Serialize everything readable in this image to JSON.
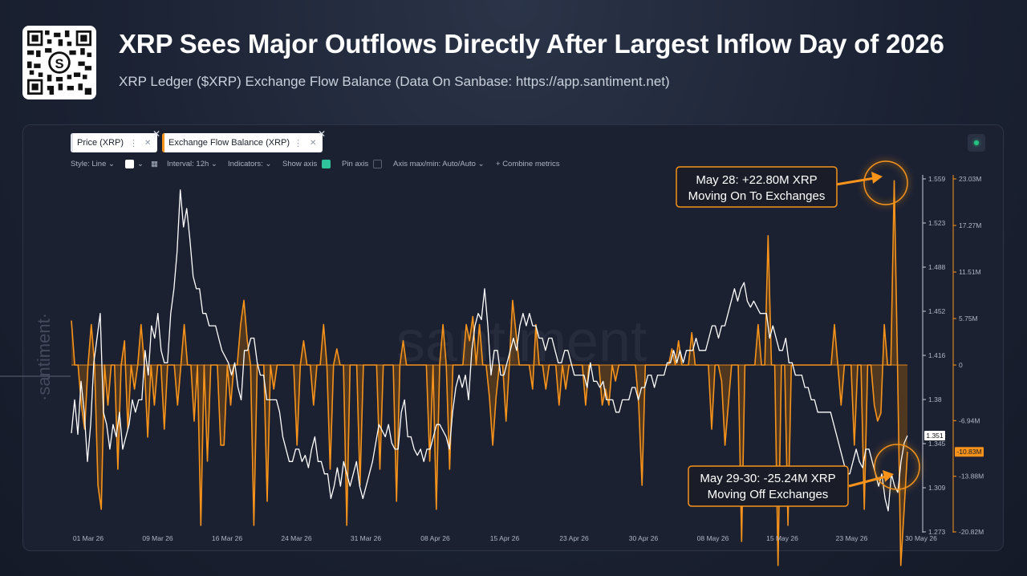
{
  "header": {
    "title": "XRP Sees Major Outflows Directly After Largest Inflow Day of 2026",
    "subtitle": "XRP Ledger ($XRP) Exchange Flow Balance (Data On Sanbase: https://app.santiment.net)"
  },
  "tabs": [
    {
      "label": "Price (XRP)",
      "color": "#ffffff"
    },
    {
      "label": "Exchange Flow Balance (XRP)",
      "color": "#f7931a"
    }
  ],
  "toolbar": {
    "style": "Style: Line",
    "interval": "Interval: 12h",
    "indicators": "Indicators:",
    "show_axis": "Show axis",
    "pin_axis": "Pin axis",
    "axis_minmax": "Axis max/min: Auto/Auto",
    "combine": "Combine metrics"
  },
  "watermark": "santiment",
  "side_watermark": "·santiment·",
  "annotations": {
    "top_line1": "May 28: +22.80M XRP",
    "top_line2": "Moving On To Exchanges",
    "bottom_line1": "May 29-30: -25.24M XRP",
    "bottom_line2": "Moving Off Exchanges"
  },
  "colors": {
    "price": "#ffffff",
    "flow": "#f7931a",
    "flow_fill": "#7a4a12",
    "accent": "#f7931a"
  },
  "chart_data": {
    "type": "line",
    "x_ticks": [
      "01 Mar 26",
      "09 Mar 26",
      "16 Mar 26",
      "24 Mar 26",
      "31 Mar 26",
      "08 Apr 26",
      "15 Apr 26",
      "23 Apr 26",
      "30 Apr 26",
      "08 May 26",
      "15 May 26",
      "23 May 26",
      "30 May 26"
    ],
    "price_axis": {
      "ticks": [
        "1.559",
        "1.523",
        "1.488",
        "1.452",
        "1.416",
        "1.38",
        "1.345",
        "1.309",
        "1.273"
      ],
      "min": 1.273,
      "max": 1.559,
      "current_label": "1.351"
    },
    "flow_axis": {
      "ticks": [
        "23.03M",
        "17.27M",
        "11.51M",
        "5.75M",
        "0",
        "-6.94M",
        "-13.88M",
        "-20.82M"
      ],
      "current_label": "-10.83M"
    },
    "series": [
      {
        "name": "Price (XRP)",
        "values": [
          1.353,
          1.38,
          1.352,
          1.395,
          1.37,
          1.33,
          1.36,
          1.41,
          1.43,
          1.45,
          1.37,
          1.36,
          1.34,
          1.36,
          1.35,
          1.37,
          1.34,
          1.35,
          1.36,
          1.38,
          1.37,
          1.38,
          1.38,
          1.42,
          1.4,
          1.44,
          1.43,
          1.45,
          1.42,
          1.41,
          1.41,
          1.45,
          1.47,
          1.5,
          1.55,
          1.52,
          1.535,
          1.51,
          1.48,
          1.47,
          1.47,
          1.45,
          1.45,
          1.44,
          1.44,
          1.44,
          1.43,
          1.42,
          1.415,
          1.41,
          1.4,
          1.41,
          1.39,
          1.38,
          1.42,
          1.42,
          1.43,
          1.43,
          1.41,
          1.4,
          1.4,
          1.38,
          1.38,
          1.38,
          1.38,
          1.37,
          1.35,
          1.34,
          1.33,
          1.33,
          1.34,
          1.34,
          1.33,
          1.335,
          1.325,
          1.34,
          1.35,
          1.33,
          1.33,
          1.32,
          1.32,
          1.3,
          1.31,
          1.325,
          1.31,
          1.33,
          1.32,
          1.31,
          1.32,
          1.33,
          1.31,
          1.3,
          1.31,
          1.32,
          1.33,
          1.345,
          1.36,
          1.355,
          1.35,
          1.36,
          1.345,
          1.34,
          1.34,
          1.37,
          1.38,
          1.35,
          1.35,
          1.34,
          1.335,
          1.34,
          1.33,
          1.34,
          1.34,
          1.35,
          1.36,
          1.36,
          1.355,
          1.35,
          1.34,
          1.37,
          1.39,
          1.4,
          1.39,
          1.4,
          1.38,
          1.42,
          1.44,
          1.45,
          1.445,
          1.47,
          1.44,
          1.4,
          1.42,
          1.42,
          1.4,
          1.4,
          1.41,
          1.42,
          1.43,
          1.42,
          1.44,
          1.45,
          1.44,
          1.45,
          1.44,
          1.44,
          1.43,
          1.43,
          1.42,
          1.43,
          1.43,
          1.42,
          1.41,
          1.41,
          1.42,
          1.42,
          1.41,
          1.4,
          1.4,
          1.4,
          1.4,
          1.39,
          1.41,
          1.395,
          1.395,
          1.39,
          1.395,
          1.38,
          1.38,
          1.38,
          1.37,
          1.37,
          1.38,
          1.38,
          1.38,
          1.39,
          1.39,
          1.38,
          1.39,
          1.39,
          1.4,
          1.4,
          1.39,
          1.4,
          1.4,
          1.4,
          1.41,
          1.41,
          1.42,
          1.41,
          1.42,
          1.41,
          1.42,
          1.42,
          1.42,
          1.43,
          1.42,
          1.42,
          1.42,
          1.43,
          1.44,
          1.44,
          1.43,
          1.44,
          1.44,
          1.45,
          1.46,
          1.47,
          1.46,
          1.47,
          1.475,
          1.46,
          1.455,
          1.46,
          1.455,
          1.45,
          1.45,
          1.45,
          1.43,
          1.44,
          1.43,
          1.42,
          1.42,
          1.43,
          1.41,
          1.41,
          1.4,
          1.4,
          1.4,
          1.39,
          1.39,
          1.38,
          1.38,
          1.37,
          1.37,
          1.37,
          1.37,
          1.37,
          1.36,
          1.35,
          1.34,
          1.33,
          1.32,
          1.32,
          1.33,
          1.34,
          1.33,
          1.325,
          1.34,
          1.34,
          1.33,
          1.32,
          1.31,
          1.32,
          1.3,
          1.29,
          1.32,
          1.31,
          1.305,
          1.33,
          1.345,
          1.351
        ]
      },
      {
        "name": "Exchange Flow Balance (XRP)",
        "values": [
          5.5,
          0,
          0,
          -5,
          -8,
          0,
          5,
          0,
          -15,
          -18,
          0,
          -5,
          0,
          0,
          -13,
          0,
          3,
          -8,
          0,
          -3,
          0,
          5,
          0,
          -9,
          0,
          -5,
          0,
          0,
          -8,
          0,
          0,
          0,
          -5,
          0,
          5,
          0,
          0,
          -7,
          0,
          -20,
          0,
          -12,
          0,
          0,
          0,
          -10,
          -10,
          0,
          -5,
          0,
          0,
          5,
          8,
          3,
          0,
          -20,
          0,
          0,
          0,
          -17,
          0,
          -3,
          0,
          0,
          0,
          0,
          0,
          0,
          -10,
          0,
          3,
          0,
          0,
          -5,
          0,
          0,
          5,
          0,
          -13,
          0,
          2,
          0,
          0,
          -20,
          0,
          0,
          0,
          -15,
          0,
          0,
          0,
          0,
          0,
          -13,
          0,
          0,
          0,
          0,
          -17,
          0,
          3,
          0,
          0,
          0,
          0,
          0,
          0,
          0,
          -12,
          0,
          -18,
          0,
          5,
          0,
          -13,
          0,
          0,
          0,
          0,
          5,
          3,
          6,
          0,
          5,
          0,
          0,
          -4,
          -10,
          -4,
          0,
          0,
          -7,
          0,
          8,
          4,
          0,
          0,
          0,
          0,
          -3,
          5,
          0,
          0,
          -3,
          0,
          0,
          0,
          -5,
          0,
          -3,
          0,
          0,
          0,
          0,
          0,
          -5,
          0,
          0,
          0,
          0,
          -5,
          -3,
          -5,
          0,
          -2,
          0,
          0,
          0,
          0,
          0,
          0,
          -5,
          -15,
          0,
          0,
          0,
          0,
          0,
          0,
          0,
          0,
          2,
          0,
          3,
          0,
          0,
          0,
          4,
          0,
          0,
          0,
          0,
          0,
          -8,
          0,
          0,
          -2,
          -10,
          -5,
          0,
          0,
          0,
          -22,
          0,
          0,
          0,
          0,
          5,
          0,
          0,
          16,
          0,
          0,
          -25,
          0,
          0,
          -20,
          0,
          0,
          0,
          0,
          0,
          0,
          0,
          0,
          0,
          0,
          0,
          0,
          0,
          5,
          0,
          -5,
          0,
          0,
          0,
          -10,
          0,
          0,
          -18,
          0,
          0,
          -5,
          -7,
          -6,
          5,
          0,
          0,
          22.8,
          0,
          -25,
          -18,
          -10.83
        ]
      }
    ]
  }
}
